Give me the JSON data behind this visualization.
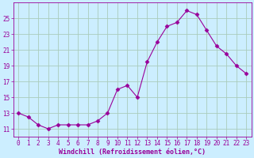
{
  "x": [
    0,
    1,
    2,
    3,
    4,
    5,
    6,
    7,
    8,
    9,
    10,
    11,
    12,
    13,
    14,
    15,
    16,
    17,
    18,
    19,
    20,
    21,
    22,
    23
  ],
  "y": [
    13.0,
    12.5,
    11.5,
    11.0,
    11.5,
    11.5,
    11.5,
    11.5,
    12.0,
    13.0,
    16.0,
    16.5,
    15.0,
    19.5,
    22.0,
    24.0,
    24.5,
    26.0,
    25.5,
    23.5,
    21.5,
    20.5,
    19.0,
    18.0
  ],
  "line_color": "#990099",
  "marker": "D",
  "marker_size": 2.5,
  "bg_color": "#cceeff",
  "grid_color": "#aaccbb",
  "xlabel": "Windchill (Refroidissement éolien,°C)",
  "xlabel_color": "#990099",
  "tick_color": "#990099",
  "ylim": [
    10,
    27
  ],
  "xlim": [
    -0.5,
    23.5
  ],
  "yticks": [
    11,
    13,
    15,
    17,
    19,
    21,
    23,
    25
  ],
  "xticks": [
    0,
    1,
    2,
    3,
    4,
    5,
    6,
    7,
    8,
    9,
    10,
    11,
    12,
    13,
    14,
    15,
    16,
    17,
    18,
    19,
    20,
    21,
    22,
    23
  ],
  "tick_fontsize": 5.5,
  "xlabel_fontsize": 6.0
}
